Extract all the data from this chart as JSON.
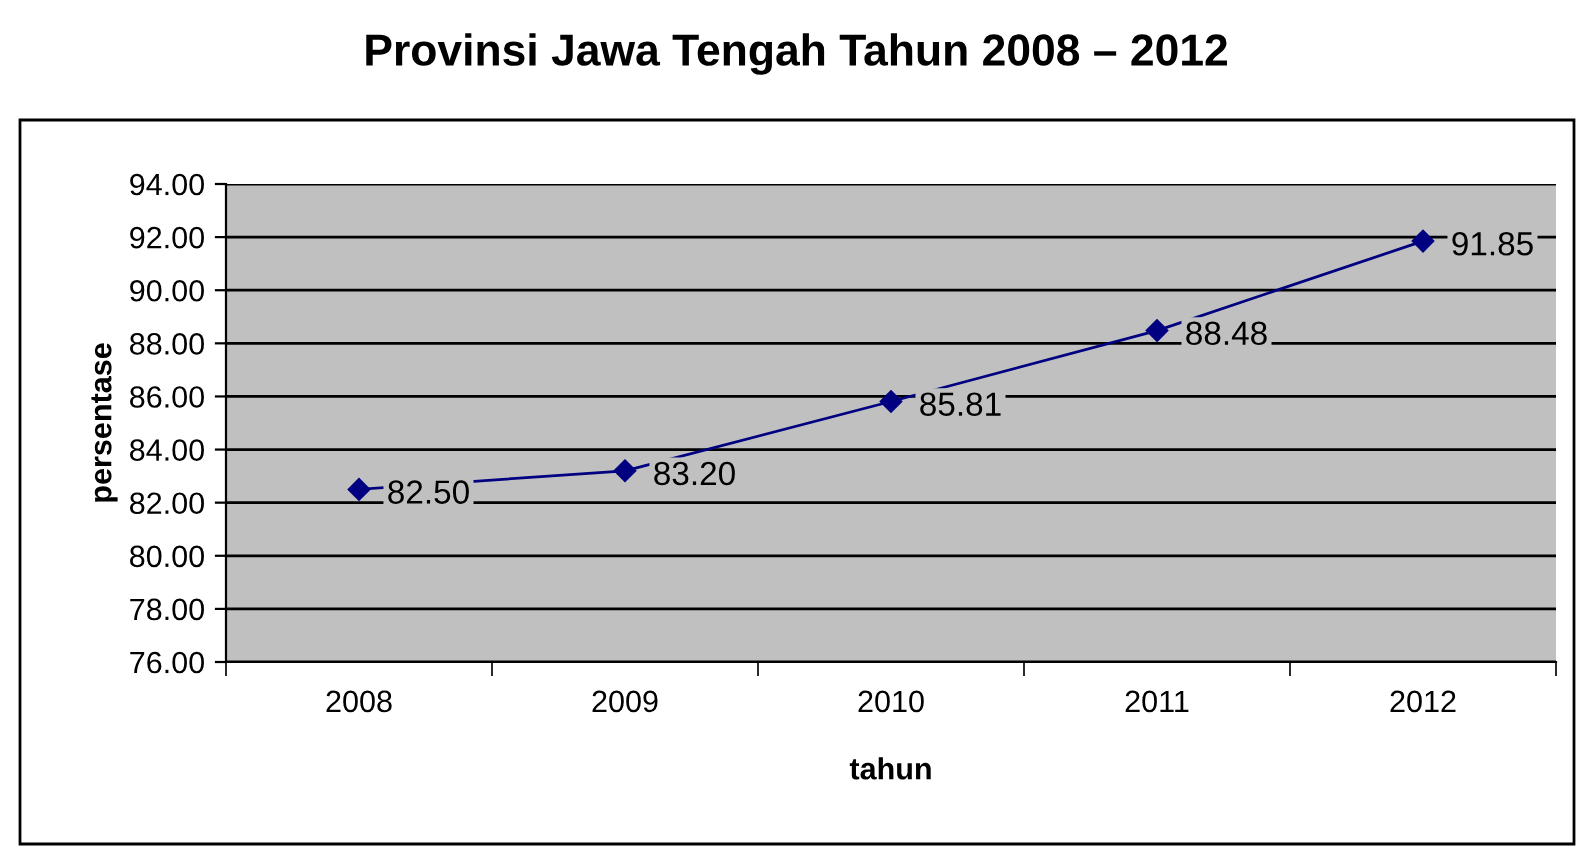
{
  "chart_data": {
    "type": "line",
    "title": "Provinsi Jawa Tengah Tahun 2008 – 2012",
    "xlabel": "tahun",
    "ylabel": "persentase",
    "categories": [
      "2008",
      "2009",
      "2010",
      "2011",
      "2012"
    ],
    "series": [
      {
        "color": "#000080",
        "values": [
          82.5,
          83.2,
          85.81,
          88.48,
          91.85
        ],
        "value_labels": [
          "82.50",
          "83.20",
          "85.81",
          "88.48",
          "91.85"
        ]
      }
    ],
    "ylim": [
      76,
      94
    ],
    "yticks": [
      {
        "value": 76,
        "label": "76.00"
      },
      {
        "value": 78,
        "label": "78.00"
      },
      {
        "value": 80,
        "label": "80.00"
      },
      {
        "value": 82,
        "label": "82.00"
      },
      {
        "value": 84,
        "label": "84.00"
      },
      {
        "value": 86,
        "label": "86.00"
      },
      {
        "value": 88,
        "label": "88.00"
      },
      {
        "value": 90,
        "label": "90.00"
      },
      {
        "value": 92,
        "label": "92.00"
      },
      {
        "value": 94,
        "label": "94.00"
      }
    ],
    "grid": "y",
    "legend": false,
    "marker": "diamond",
    "line_style": "solid"
  }
}
